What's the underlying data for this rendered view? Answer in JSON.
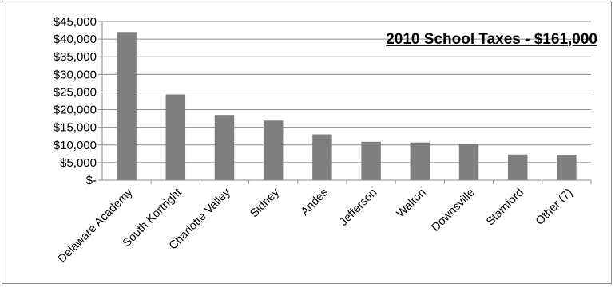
{
  "chart_data": {
    "type": "bar",
    "title": "2010 School Taxes - $161,000",
    "categories": [
      "Delaware Academy",
      "South Kortright",
      "Charlotte Valley",
      "Sidney",
      "Andes",
      "Jefferson",
      "Walton",
      "Downsville",
      "Stamford",
      "Other (7)"
    ],
    "values": [
      42000,
      24300,
      18500,
      16900,
      13000,
      10900,
      10700,
      10300,
      7300,
      7200
    ],
    "ylim": [
      0,
      45000
    ],
    "yticks": [
      0,
      5000,
      10000,
      15000,
      20000,
      25000,
      30000,
      35000,
      40000,
      45000
    ],
    "ytick_labels": [
      "$-",
      "$5,000",
      "$10,000",
      "$15,000",
      "$20,000",
      "$25,000",
      "$30,000",
      "$35,000",
      "$40,000",
      "$45,000"
    ],
    "xlabel": "",
    "ylabel": "",
    "grid": true,
    "legend": "none",
    "bar_color": "#7f7f7f",
    "grid_color": "#8c8c8c"
  }
}
